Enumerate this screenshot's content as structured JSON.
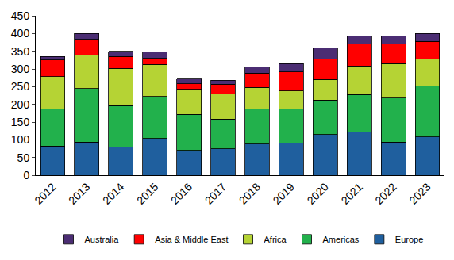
{
  "chart_data": {
    "type": "bar",
    "stacked": true,
    "categories": [
      "2012",
      "2013",
      "2014",
      "2015",
      "2016",
      "2017",
      "2018",
      "2019",
      "2020",
      "2021",
      "2022",
      "2023"
    ],
    "series": [
      {
        "name": "Europe",
        "color": "#1f5f9e",
        "values": [
          82,
          93,
          80,
          103,
          70,
          75,
          88,
          91,
          115,
          123,
          93,
          108
        ]
      },
      {
        "name": "Americas",
        "color": "#22b14c",
        "values": [
          105,
          152,
          117,
          119,
          102,
          83,
          98,
          95,
          97,
          105,
          125,
          144
        ]
      },
      {
        "name": "Africa",
        "color": "#b5d334",
        "values": [
          91,
          95,
          105,
          91,
          70,
          72,
          62,
          52,
          58,
          80,
          97,
          76
        ]
      },
      {
        "name": "Asia & Middle East",
        "color": "#ff0000",
        "values": [
          47,
          43,
          33,
          17,
          16,
          27,
          40,
          54,
          57,
          62,
          55,
          50
        ]
      },
      {
        "name": "Australia",
        "color": "#4b2d73",
        "values": [
          10,
          17,
          15,
          18,
          14,
          11,
          17,
          23,
          33,
          23,
          23,
          22
        ]
      }
    ],
    "ylim": [
      0,
      450
    ],
    "yticks": [
      0,
      50,
      100,
      150,
      200,
      250,
      300,
      350,
      400,
      450
    ],
    "grid": false,
    "legend": "bottom"
  }
}
